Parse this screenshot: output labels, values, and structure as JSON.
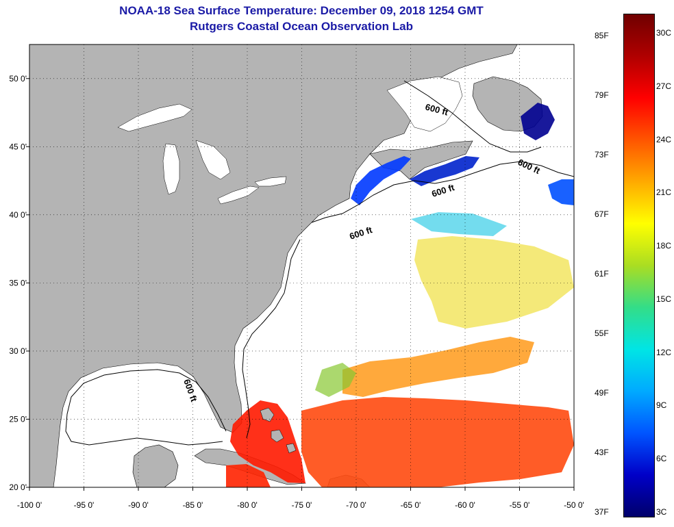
{
  "header": {
    "title": "NOAA-18 Sea Surface Temperature:  December 09, 2018 1254 GMT",
    "subtitle": "Rutgers Coastal Ocean Observation Lab"
  },
  "map": {
    "lon_range": [
      -100,
      -50
    ],
    "lat_range": [
      20,
      52.5
    ],
    "lon_ticks": [
      "-100 0'",
      "-95 0'",
      "-90 0'",
      "-85 0'",
      "-80 0'",
      "-75 0'",
      "-70 0'",
      "-65 0'",
      "-60 0'",
      "-55 0'",
      "-50 0'"
    ],
    "lat_ticks": [
      "20 0'",
      "25 0'",
      "30 0'",
      "35 0'",
      "40 0'",
      "45 0'",
      "50 0'"
    ],
    "isobath_labels": [
      "600 ft",
      "600 ft",
      "600 ft",
      "600 ft",
      "600 ft"
    ],
    "colors": {
      "land": "#b4b4b4",
      "ocean": "#ffffff",
      "lakes": "#ffffff"
    }
  },
  "colorbar": {
    "fahrenheit_labels": [
      "85F",
      "79F",
      "73F",
      "67F",
      "61F",
      "55F",
      "49F",
      "43F",
      "37F"
    ],
    "celsius_labels": [
      "30C",
      "27C",
      "24C",
      "21C",
      "18C",
      "15C",
      "12C",
      "9C",
      "6C",
      "3C"
    ],
    "range_c": [
      3,
      31
    ],
    "gradient": [
      "#00006b",
      "#0000c8",
      "#0055ff",
      "#00aaff",
      "#00e5e5",
      "#33dd88",
      "#aadd22",
      "#ffff00",
      "#ffaa00",
      "#ff5500",
      "#ff0000",
      "#b00000",
      "#700000"
    ]
  }
}
